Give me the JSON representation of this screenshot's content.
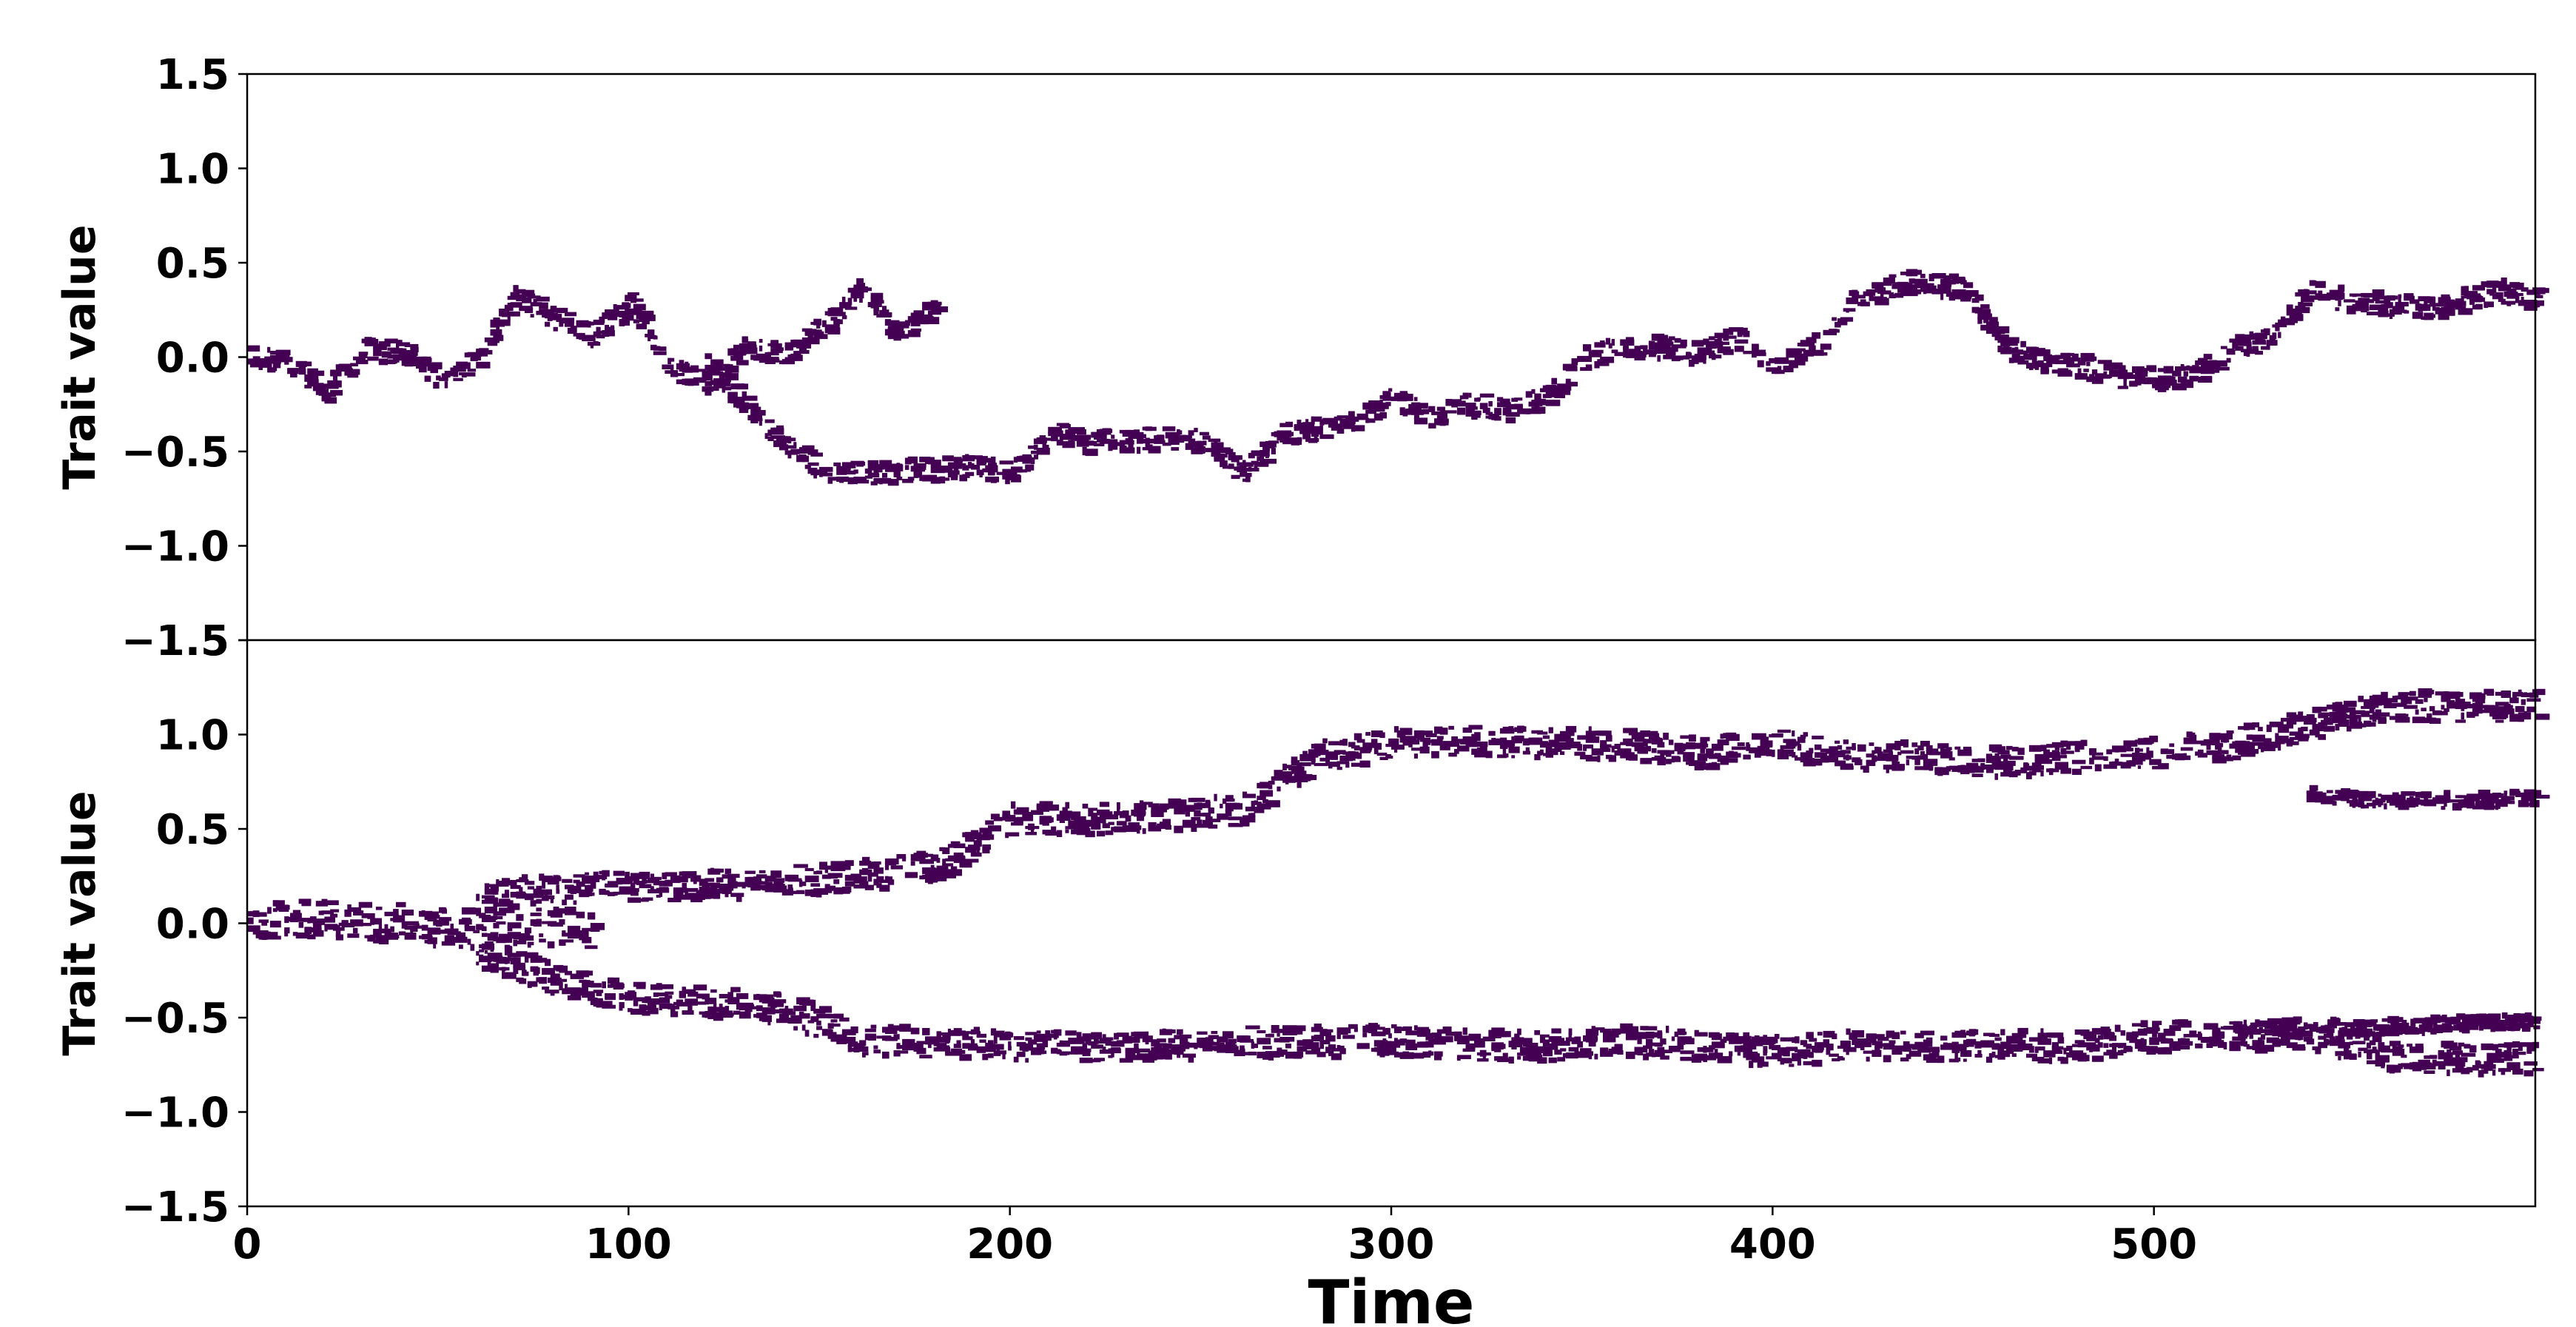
{
  "chart_data": [
    {
      "type": "heatmap",
      "panel": "top",
      "title": "",
      "xlabel": "",
      "ylabel": "Trait value",
      "xlim": [
        0,
        600
      ],
      "ylim": [
        -1.5,
        1.5
      ],
      "yticks": [
        -1.5,
        -1.0,
        -0.5,
        0.0,
        0.5,
        1.0,
        1.5
      ],
      "ytick_labels": [
        "−1.5",
        "−1.0",
        "−0.5",
        "0.0",
        "0.5",
        "1.0",
        "1.5"
      ],
      "color": "#440154",
      "branches": [
        {
          "x": [
            0,
            10,
            20,
            30,
            40,
            50,
            60,
            70,
            80,
            90,
            100,
            110,
            120,
            130,
            140,
            150,
            160,
            170,
            180
          ],
          "y": [
            0.0,
            -0.02,
            -0.18,
            0.04,
            0.02,
            -0.12,
            0.0,
            0.32,
            0.2,
            0.12,
            0.28,
            -0.05,
            -0.14,
            0.05,
            0.02,
            0.15,
            0.35,
            0.12,
            0.28
          ],
          "spread": 0.06
        },
        {
          "x": [
            120,
            130,
            140,
            150,
            160,
            170,
            180,
            190,
            200,
            210,
            220,
            230,
            240,
            250,
            260,
            270,
            280,
            290,
            300,
            310,
            320,
            330,
            340,
            350,
            360,
            370,
            380,
            390,
            400,
            410,
            420,
            430,
            440,
            450,
            460,
            470,
            480,
            490,
            500,
            510,
            520,
            530,
            540,
            550,
            560,
            570,
            580,
            590,
            600
          ],
          "y": [
            -0.05,
            -0.25,
            -0.45,
            -0.6,
            -0.62,
            -0.6,
            -0.6,
            -0.58,
            -0.62,
            -0.4,
            -0.45,
            -0.45,
            -0.42,
            -0.45,
            -0.62,
            -0.42,
            -0.38,
            -0.32,
            -0.22,
            -0.32,
            -0.25,
            -0.28,
            -0.22,
            0.0,
            0.05,
            0.05,
            0.02,
            0.1,
            -0.05,
            0.05,
            0.28,
            0.38,
            0.4,
            0.35,
            0.05,
            -0.02,
            -0.05,
            -0.1,
            -0.12,
            -0.1,
            0.05,
            0.1,
            0.35,
            0.3,
            0.28,
            0.25,
            0.3,
            0.35,
            0.3
          ],
          "spread": 0.06
        }
      ]
    },
    {
      "type": "heatmap",
      "panel": "bottom",
      "title": "",
      "xlabel": "Time",
      "ylabel": "Trait value",
      "xlim": [
        0,
        600
      ],
      "ylim": [
        -1.5,
        1.5
      ],
      "xticks": [
        0,
        100,
        200,
        300,
        400,
        500
      ],
      "xtick_labels": [
        "0",
        "100",
        "200",
        "300",
        "400",
        "500"
      ],
      "yticks": [
        -1.5,
        -1.0,
        -0.5,
        0.0,
        0.5,
        1.0,
        1.5
      ],
      "ytick_labels": [
        "−1.5",
        "−1.0",
        "−0.5",
        "0.0",
        "0.5",
        "1.0",
        "1.5"
      ],
      "color": "#440154",
      "branches": [
        {
          "x": [
            0,
            10,
            20,
            30,
            40,
            50,
            60,
            70,
            80,
            90
          ],
          "y": [
            0.02,
            0.02,
            0.02,
            0.0,
            0.0,
            -0.02,
            -0.03,
            -0.02,
            -0.02,
            -0.03
          ],
          "spread": 0.1
        },
        {
          "x": [
            60,
            80,
            100,
            120,
            140,
            160,
            180,
            200,
            220,
            240,
            260,
            280,
            300,
            320,
            340,
            360,
            380,
            400,
            420,
            440,
            460,
            480,
            500,
            520,
            540,
            560,
            580,
            600
          ],
          "y": [
            0.15,
            0.18,
            0.2,
            0.2,
            0.22,
            0.25,
            0.3,
            0.55,
            0.55,
            0.57,
            0.6,
            0.88,
            0.95,
            0.97,
            0.95,
            0.95,
            0.9,
            0.95,
            0.88,
            0.88,
            0.85,
            0.88,
            0.9,
            0.95,
            1.05,
            1.15,
            1.15,
            1.15
          ],
          "spread": 0.08
        },
        {
          "x": [
            540,
            560,
            580,
            600
          ],
          "y": [
            0.68,
            0.65,
            0.65,
            0.66
          ],
          "spread": 0.04
        },
        {
          "x": [
            60,
            80,
            100,
            120,
            140,
            160,
            180,
            200,
            220,
            240,
            260,
            280,
            300,
            320,
            340,
            360,
            380,
            400,
            420,
            440,
            460,
            480,
            500,
            520,
            540,
            560,
            580,
            600
          ],
          "y": [
            -0.15,
            -0.3,
            -0.4,
            -0.42,
            -0.45,
            -0.62,
            -0.63,
            -0.65,
            -0.65,
            -0.65,
            -0.63,
            -0.63,
            -0.62,
            -0.65,
            -0.65,
            -0.62,
            -0.65,
            -0.68,
            -0.65,
            -0.65,
            -0.65,
            -0.65,
            -0.6,
            -0.6,
            -0.6,
            -0.7,
            -0.72,
            -0.72
          ],
          "spread": 0.08
        },
        {
          "x": [
            520,
            540,
            560,
            580,
            600
          ],
          "y": [
            -0.55,
            -0.55,
            -0.55,
            -0.53,
            -0.52
          ],
          "spread": 0.04
        }
      ]
    }
  ]
}
